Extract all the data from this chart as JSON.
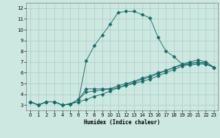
{
  "title": "",
  "xlabel": "Humidex (Indice chaleur)",
  "bg_color": "#cce8e0",
  "line_color": "#1a6b6b",
  "xlim": [
    -0.5,
    23.5
  ],
  "ylim": [
    2.5,
    12.5
  ],
  "xticks": [
    0,
    1,
    2,
    3,
    4,
    5,
    6,
    7,
    8,
    9,
    10,
    11,
    12,
    13,
    14,
    15,
    16,
    17,
    18,
    19,
    20,
    21,
    22,
    23
  ],
  "yticks": [
    3,
    4,
    5,
    6,
    7,
    8,
    9,
    10,
    11,
    12
  ],
  "grid_color": "#aaccc4",
  "lines": [
    {
      "x": [
        0,
        1,
        2,
        3,
        4,
        5,
        6,
        7,
        8,
        9,
        10,
        11,
        12,
        13,
        14,
        15,
        16,
        17,
        18,
        19,
        20,
        21,
        22,
        23
      ],
      "y": [
        3.3,
        3.0,
        3.3,
        3.3,
        3.0,
        3.1,
        3.3,
        7.1,
        8.5,
        9.5,
        10.5,
        11.6,
        11.7,
        11.7,
        11.4,
        11.1,
        9.3,
        8.0,
        7.5,
        6.8,
        6.7,
        6.8,
        6.8,
        6.5
      ]
    },
    {
      "x": [
        0,
        1,
        2,
        3,
        4,
        5,
        6,
        7,
        8,
        9,
        10,
        11,
        12,
        13,
        14,
        15,
        16,
        17,
        18,
        19,
        20,
        21,
        22,
        23
      ],
      "y": [
        3.3,
        3.0,
        3.3,
        3.3,
        3.0,
        3.1,
        3.5,
        4.5,
        4.5,
        4.5,
        4.5,
        4.8,
        5.0,
        5.2,
        5.5,
        5.7,
        6.0,
        6.2,
        6.5,
        6.8,
        7.0,
        7.2,
        7.0,
        6.5
      ]
    },
    {
      "x": [
        0,
        1,
        2,
        3,
        4,
        5,
        6,
        7,
        8,
        9,
        10,
        11,
        12,
        13,
        14,
        15,
        16,
        17,
        18,
        19,
        20,
        21,
        22,
        23
      ],
      "y": [
        3.3,
        3.0,
        3.3,
        3.3,
        3.0,
        3.1,
        3.5,
        4.2,
        4.3,
        4.4,
        4.5,
        4.6,
        4.8,
        5.0,
        5.2,
        5.4,
        5.7,
        6.0,
        6.3,
        6.6,
        6.8,
        6.9,
        7.0,
        6.5
      ]
    },
    {
      "x": [
        0,
        1,
        2,
        3,
        4,
        5,
        6,
        7,
        8,
        9,
        10,
        11,
        12,
        13,
        14,
        15,
        16,
        17,
        18,
        19,
        20,
        21,
        22,
        23
      ],
      "y": [
        3.3,
        3.0,
        3.3,
        3.3,
        3.0,
        3.1,
        3.3,
        3.5,
        3.8,
        4.0,
        4.3,
        4.6,
        4.9,
        5.1,
        5.4,
        5.6,
        5.9,
        6.2,
        6.5,
        6.7,
        6.9,
        7.0,
        6.8,
        6.5
      ]
    }
  ]
}
